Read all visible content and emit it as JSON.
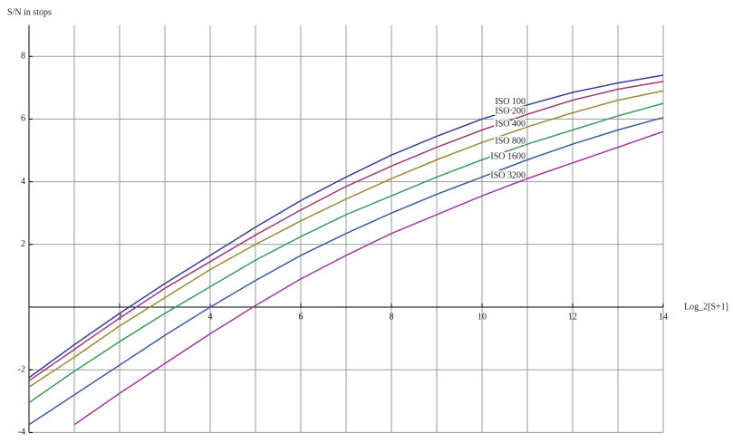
{
  "chart_data": {
    "type": "line",
    "y_label": "S/N in stops",
    "x_label": "Log_2[S+1]",
    "x": [
      0,
      1,
      2,
      3,
      4,
      5,
      6,
      7,
      8,
      9,
      10,
      11,
      12,
      13,
      14
    ],
    "xlim": [
      0,
      14
    ],
    "ylim": [
      -4,
      9
    ],
    "xticks": [
      2,
      4,
      6,
      8,
      10,
      12,
      14
    ],
    "yticks": [
      -4,
      -2,
      2,
      4,
      6,
      8
    ],
    "grid": true,
    "series": [
      {
        "name": "ISO 100",
        "color": "#3b3b9c",
        "values": [
          -2.25,
          -1.2,
          -0.2,
          0.75,
          1.65,
          2.55,
          3.4,
          4.15,
          4.85,
          5.45,
          6.0,
          6.45,
          6.85,
          7.15,
          7.4
        ]
      },
      {
        "name": "ISO 200",
        "color": "#9c3a78",
        "values": [
          -2.35,
          -1.35,
          -0.35,
          0.6,
          1.45,
          2.3,
          3.1,
          3.85,
          4.5,
          5.1,
          5.65,
          6.15,
          6.6,
          6.95,
          7.2
        ]
      },
      {
        "name": "ISO 400",
        "color": "#9c8a3c",
        "values": [
          -2.55,
          -1.6,
          -0.6,
          0.3,
          1.2,
          2.0,
          2.75,
          3.45,
          4.1,
          4.7,
          5.25,
          5.75,
          6.2,
          6.6,
          6.9
        ]
      },
      {
        "name": "ISO 800",
        "color": "#3c9a5c",
        "values": [
          -3.05,
          -2.05,
          -1.1,
          -0.2,
          0.65,
          1.5,
          2.25,
          2.95,
          3.55,
          4.15,
          4.7,
          5.2,
          5.65,
          6.1,
          6.5
        ]
      },
      {
        "name": "ISO 1600",
        "color": "#3c5c9c",
        "values": [
          -3.75,
          -2.8,
          -1.85,
          -0.9,
          0.0,
          0.85,
          1.65,
          2.35,
          3.0,
          3.6,
          4.15,
          4.7,
          5.2,
          5.65,
          6.05
        ]
      },
      {
        "name": "ISO 3200",
        "color": "#9c3a9c",
        "values": [
          null,
          -3.75,
          -2.75,
          -1.8,
          -0.85,
          0.05,
          0.9,
          1.65,
          2.35,
          2.95,
          3.55,
          4.1,
          4.6,
          5.1,
          5.6
        ]
      }
    ]
  }
}
